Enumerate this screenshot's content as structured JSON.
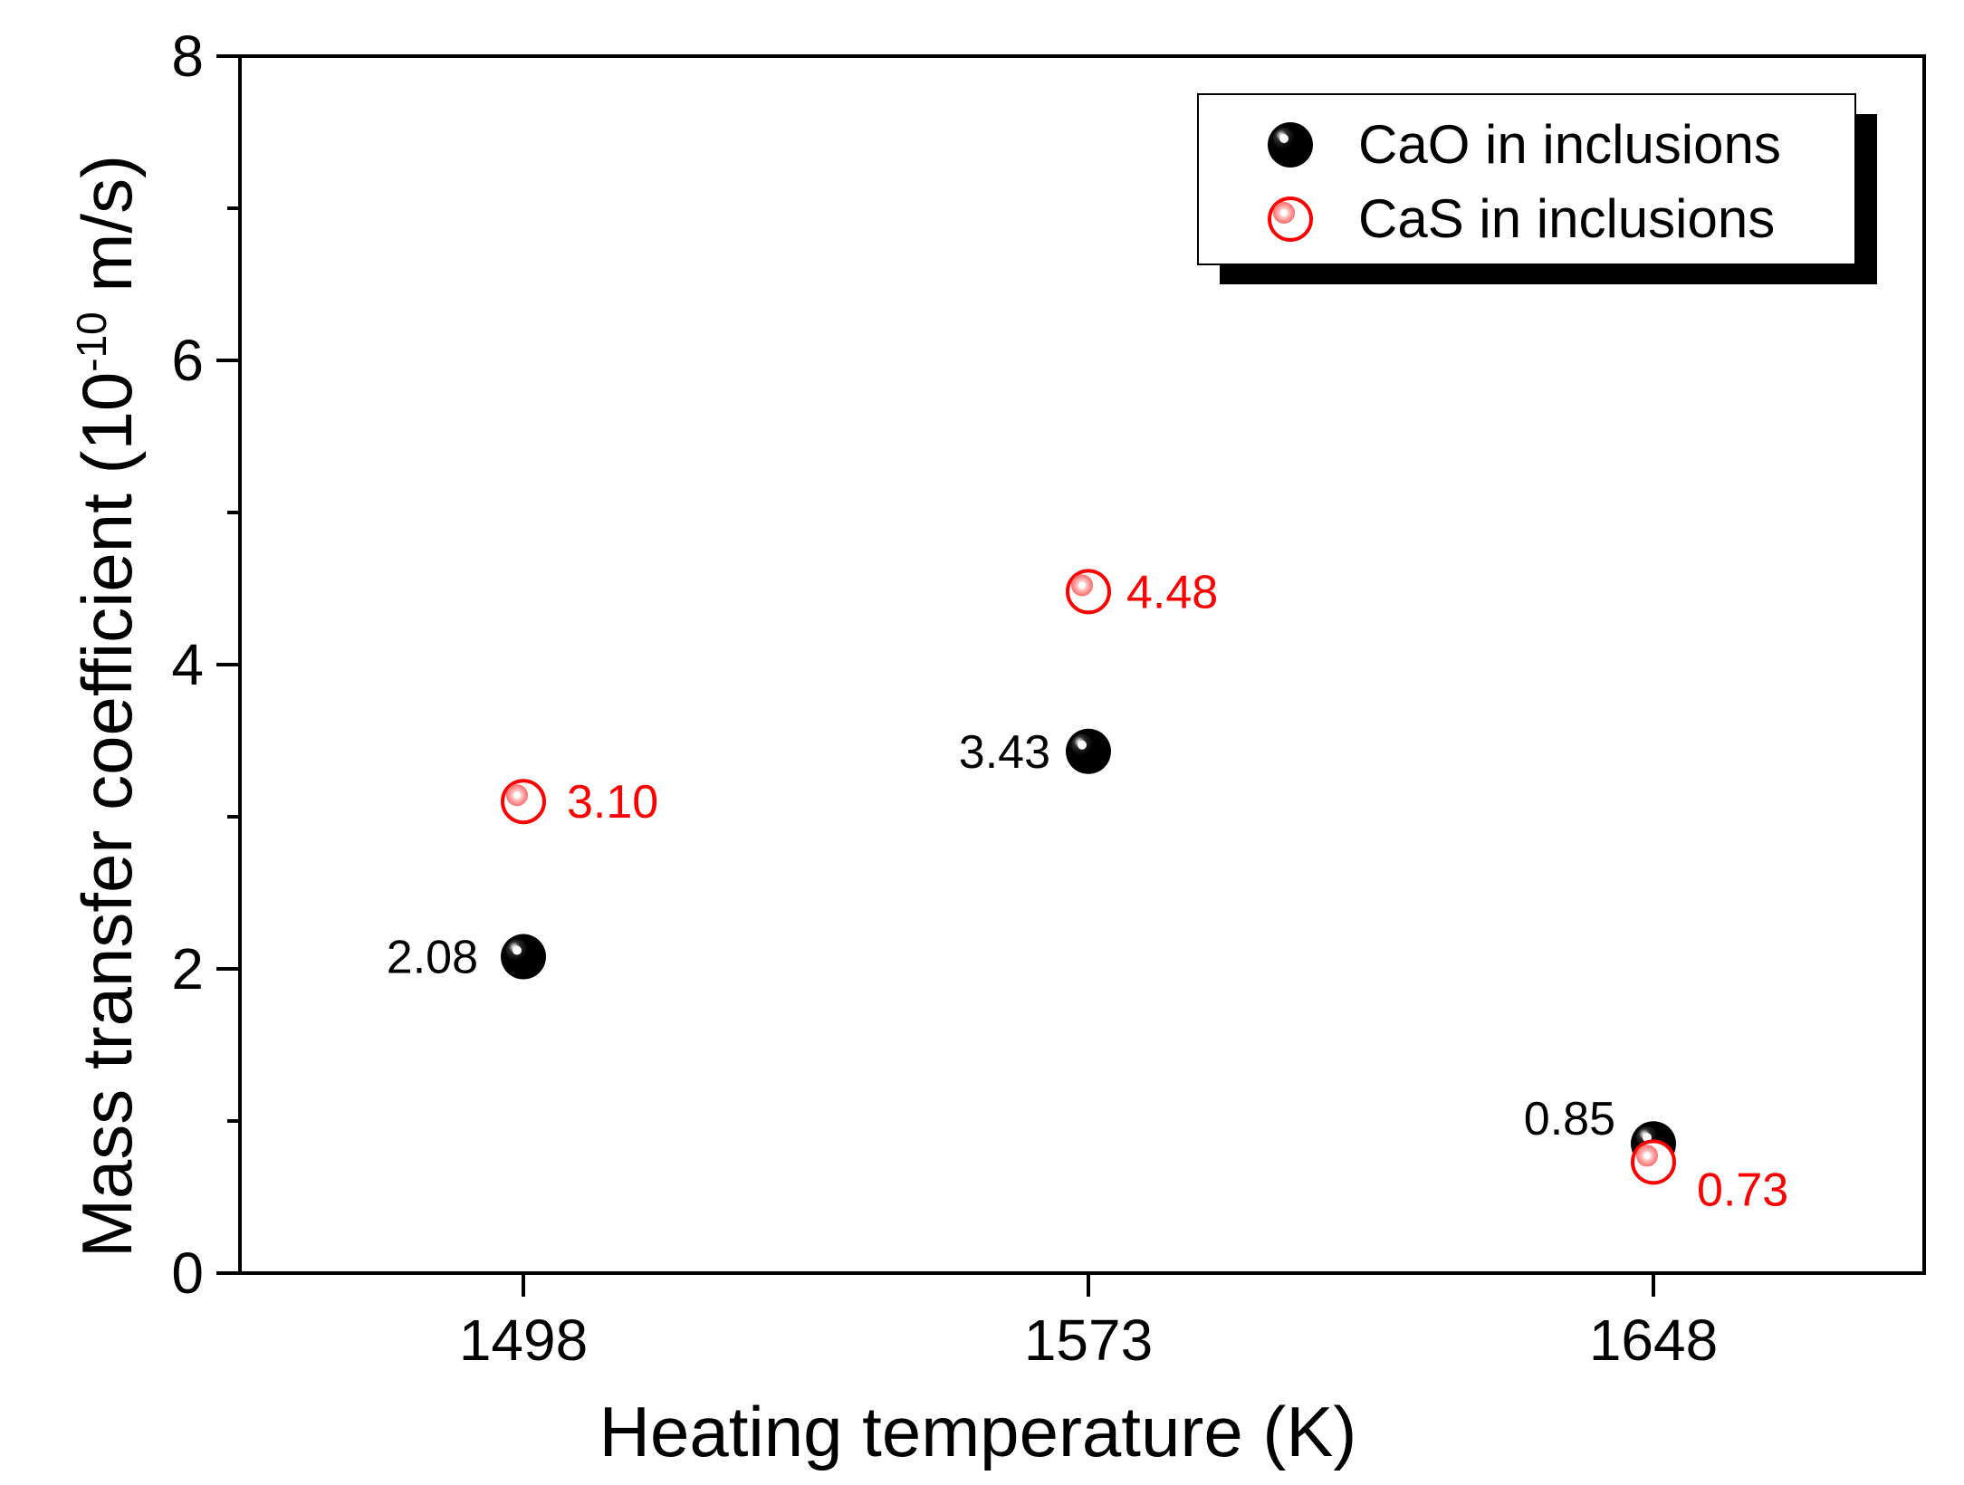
{
  "chart_data": {
    "type": "scatter",
    "title": "",
    "xlabel": "Heating temperature (K)",
    "ylabel": {
      "prefix": "Mass transfer coefficient (10",
      "exponent": "-10",
      "suffix": " m/s)"
    },
    "categories": [
      "1498",
      "1573",
      "1648"
    ],
    "ylim": [
      0,
      8
    ],
    "yticks_major": [
      0,
      2,
      4,
      6,
      8
    ],
    "yticks_labels": [
      "0",
      "2",
      "4",
      "6",
      "8"
    ],
    "series": [
      {
        "name": "CaO in inclusions",
        "marker": "filled-sphere",
        "color": "#000000",
        "values": [
          2.08,
          3.43,
          0.85
        ],
        "labels": [
          "2.08",
          "3.43",
          "0.85"
        ],
        "label_side": "left"
      },
      {
        "name": "CaS in inclusions",
        "marker": "open-circle",
        "color": "#ff0000",
        "values": [
          3.1,
          4.48,
          0.73
        ],
        "labels": [
          "3.10",
          "4.48",
          "0.73"
        ],
        "label_side": "right"
      }
    ],
    "legend": "top-right",
    "grid": false
  }
}
